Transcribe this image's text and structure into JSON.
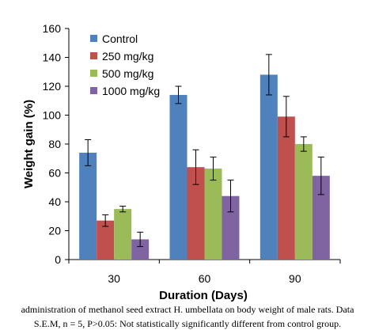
{
  "chart_data": {
    "type": "bar",
    "categories": [
      "30",
      "60",
      "90"
    ],
    "series": [
      {
        "name": "Control",
        "values": [
          74,
          114,
          128
        ],
        "errors": [
          9,
          6,
          14
        ],
        "color": "#4F81BD"
      },
      {
        "name": "250 mg/kg",
        "values": [
          27,
          64,
          99
        ],
        "errors": [
          4,
          12,
          14
        ],
        "color": "#C0504D"
      },
      {
        "name": "500 mg/kg",
        "values": [
          35,
          63,
          80
        ],
        "errors": [
          2,
          8,
          5
        ],
        "color": "#9BBB59"
      },
      {
        "name": "1000 mg/kg",
        "values": [
          14,
          44,
          58
        ],
        "errors": [
          5,
          11,
          13
        ],
        "color": "#8064A2"
      }
    ],
    "ylim": [
      0,
      160
    ],
    "yticks": [
      "0",
      "20",
      "40",
      "60",
      "80",
      "100",
      "120",
      "140",
      "160"
    ],
    "xlabel": "Duration (Days)",
    "ylabel": "Weight gain (%)",
    "legend_position": "top-left",
    "grid": false
  },
  "caption": {
    "line1": "administration of methanol seed extract H. umbellata on body weight of male rats. Data",
    "line2": "S.E.M, n = 5, P>0.05: Not statistically significantly different from control group."
  }
}
